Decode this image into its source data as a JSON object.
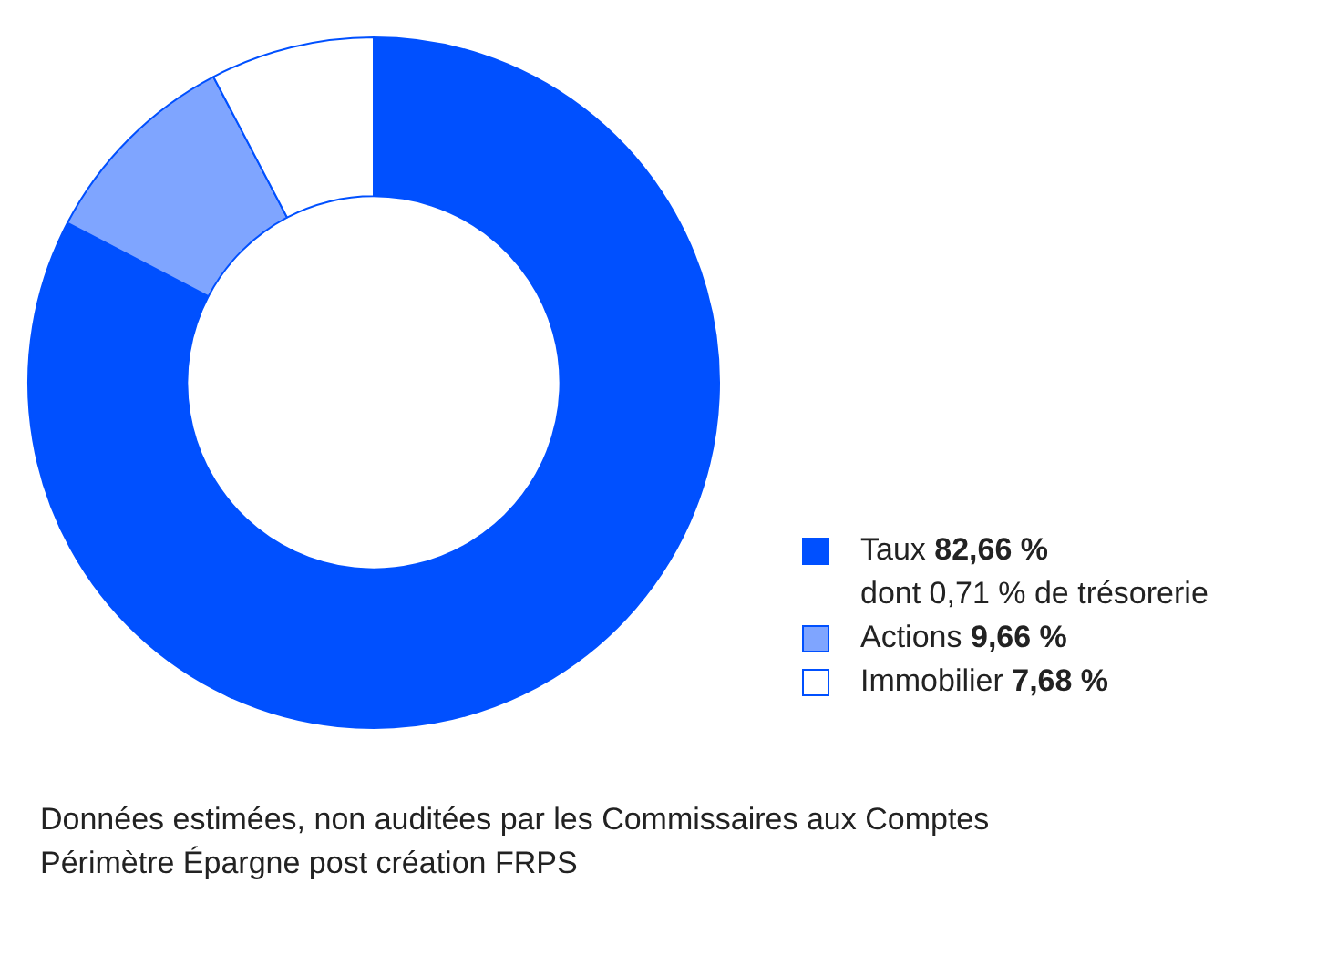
{
  "chart_data": {
    "type": "donut",
    "categories": [
      "Taux",
      "Actions",
      "Immobilier"
    ],
    "values": [
      82.66,
      9.66,
      7.68
    ],
    "colors": [
      "#0050ff",
      "#7fa5ff",
      "#ffffff"
    ],
    "value_labels": [
      "82,66 %",
      "9,66 %",
      "7,68 %"
    ],
    "legend": "bottom right",
    "annotations": [
      "dont 0,71 % de trésorerie",
      "Données estimées, non auditées par les Commissaires aux Comptes",
      "Périmètre Épargne post création FRPS"
    ]
  }
}
